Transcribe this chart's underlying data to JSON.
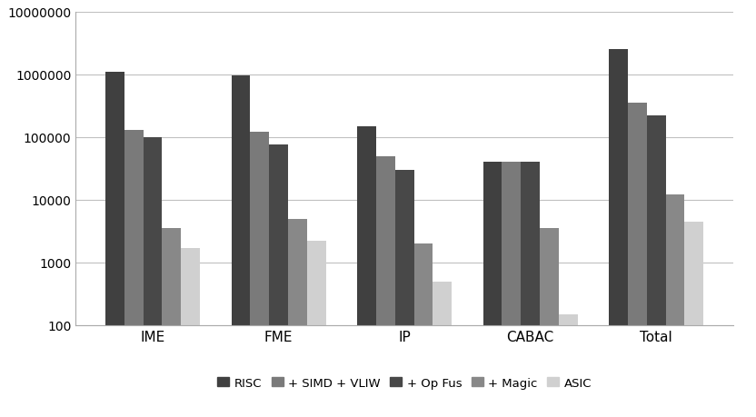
{
  "categories": [
    "IME",
    "FME",
    "IP",
    "CABAC",
    "Total"
  ],
  "series": {
    "RISC": [
      1100000,
      950000,
      150000,
      40000,
      2500000
    ],
    "+ SIMD + VLIW": [
      130000,
      120000,
      50000,
      40000,
      350000
    ],
    "+ Op Fus": [
      100000,
      75000,
      30000,
      40000,
      220000
    ],
    "+ Magic": [
      3500,
      5000,
      2000,
      3500,
      12000
    ],
    "ASIC": [
      1700,
      2200,
      500,
      150,
      4500
    ]
  },
  "colors": {
    "RISC": "#404040",
    "+ SIMD + VLIW": "#7a7a7a",
    "+ Op Fus": "#484848",
    "+ Magic": "#888888",
    "ASIC": "#d0d0d0"
  },
  "legend_order": [
    "RISC",
    "+ SIMD + VLIW",
    "+ Op Fus",
    "+ Magic",
    "ASIC"
  ],
  "ylim": [
    100,
    10000000
  ],
  "background_color": "#ffffff",
  "grid_color": "#c0c0c0",
  "bar_width": 0.15,
  "figwidth": 8.32,
  "figheight": 4.6,
  "dpi": 100
}
